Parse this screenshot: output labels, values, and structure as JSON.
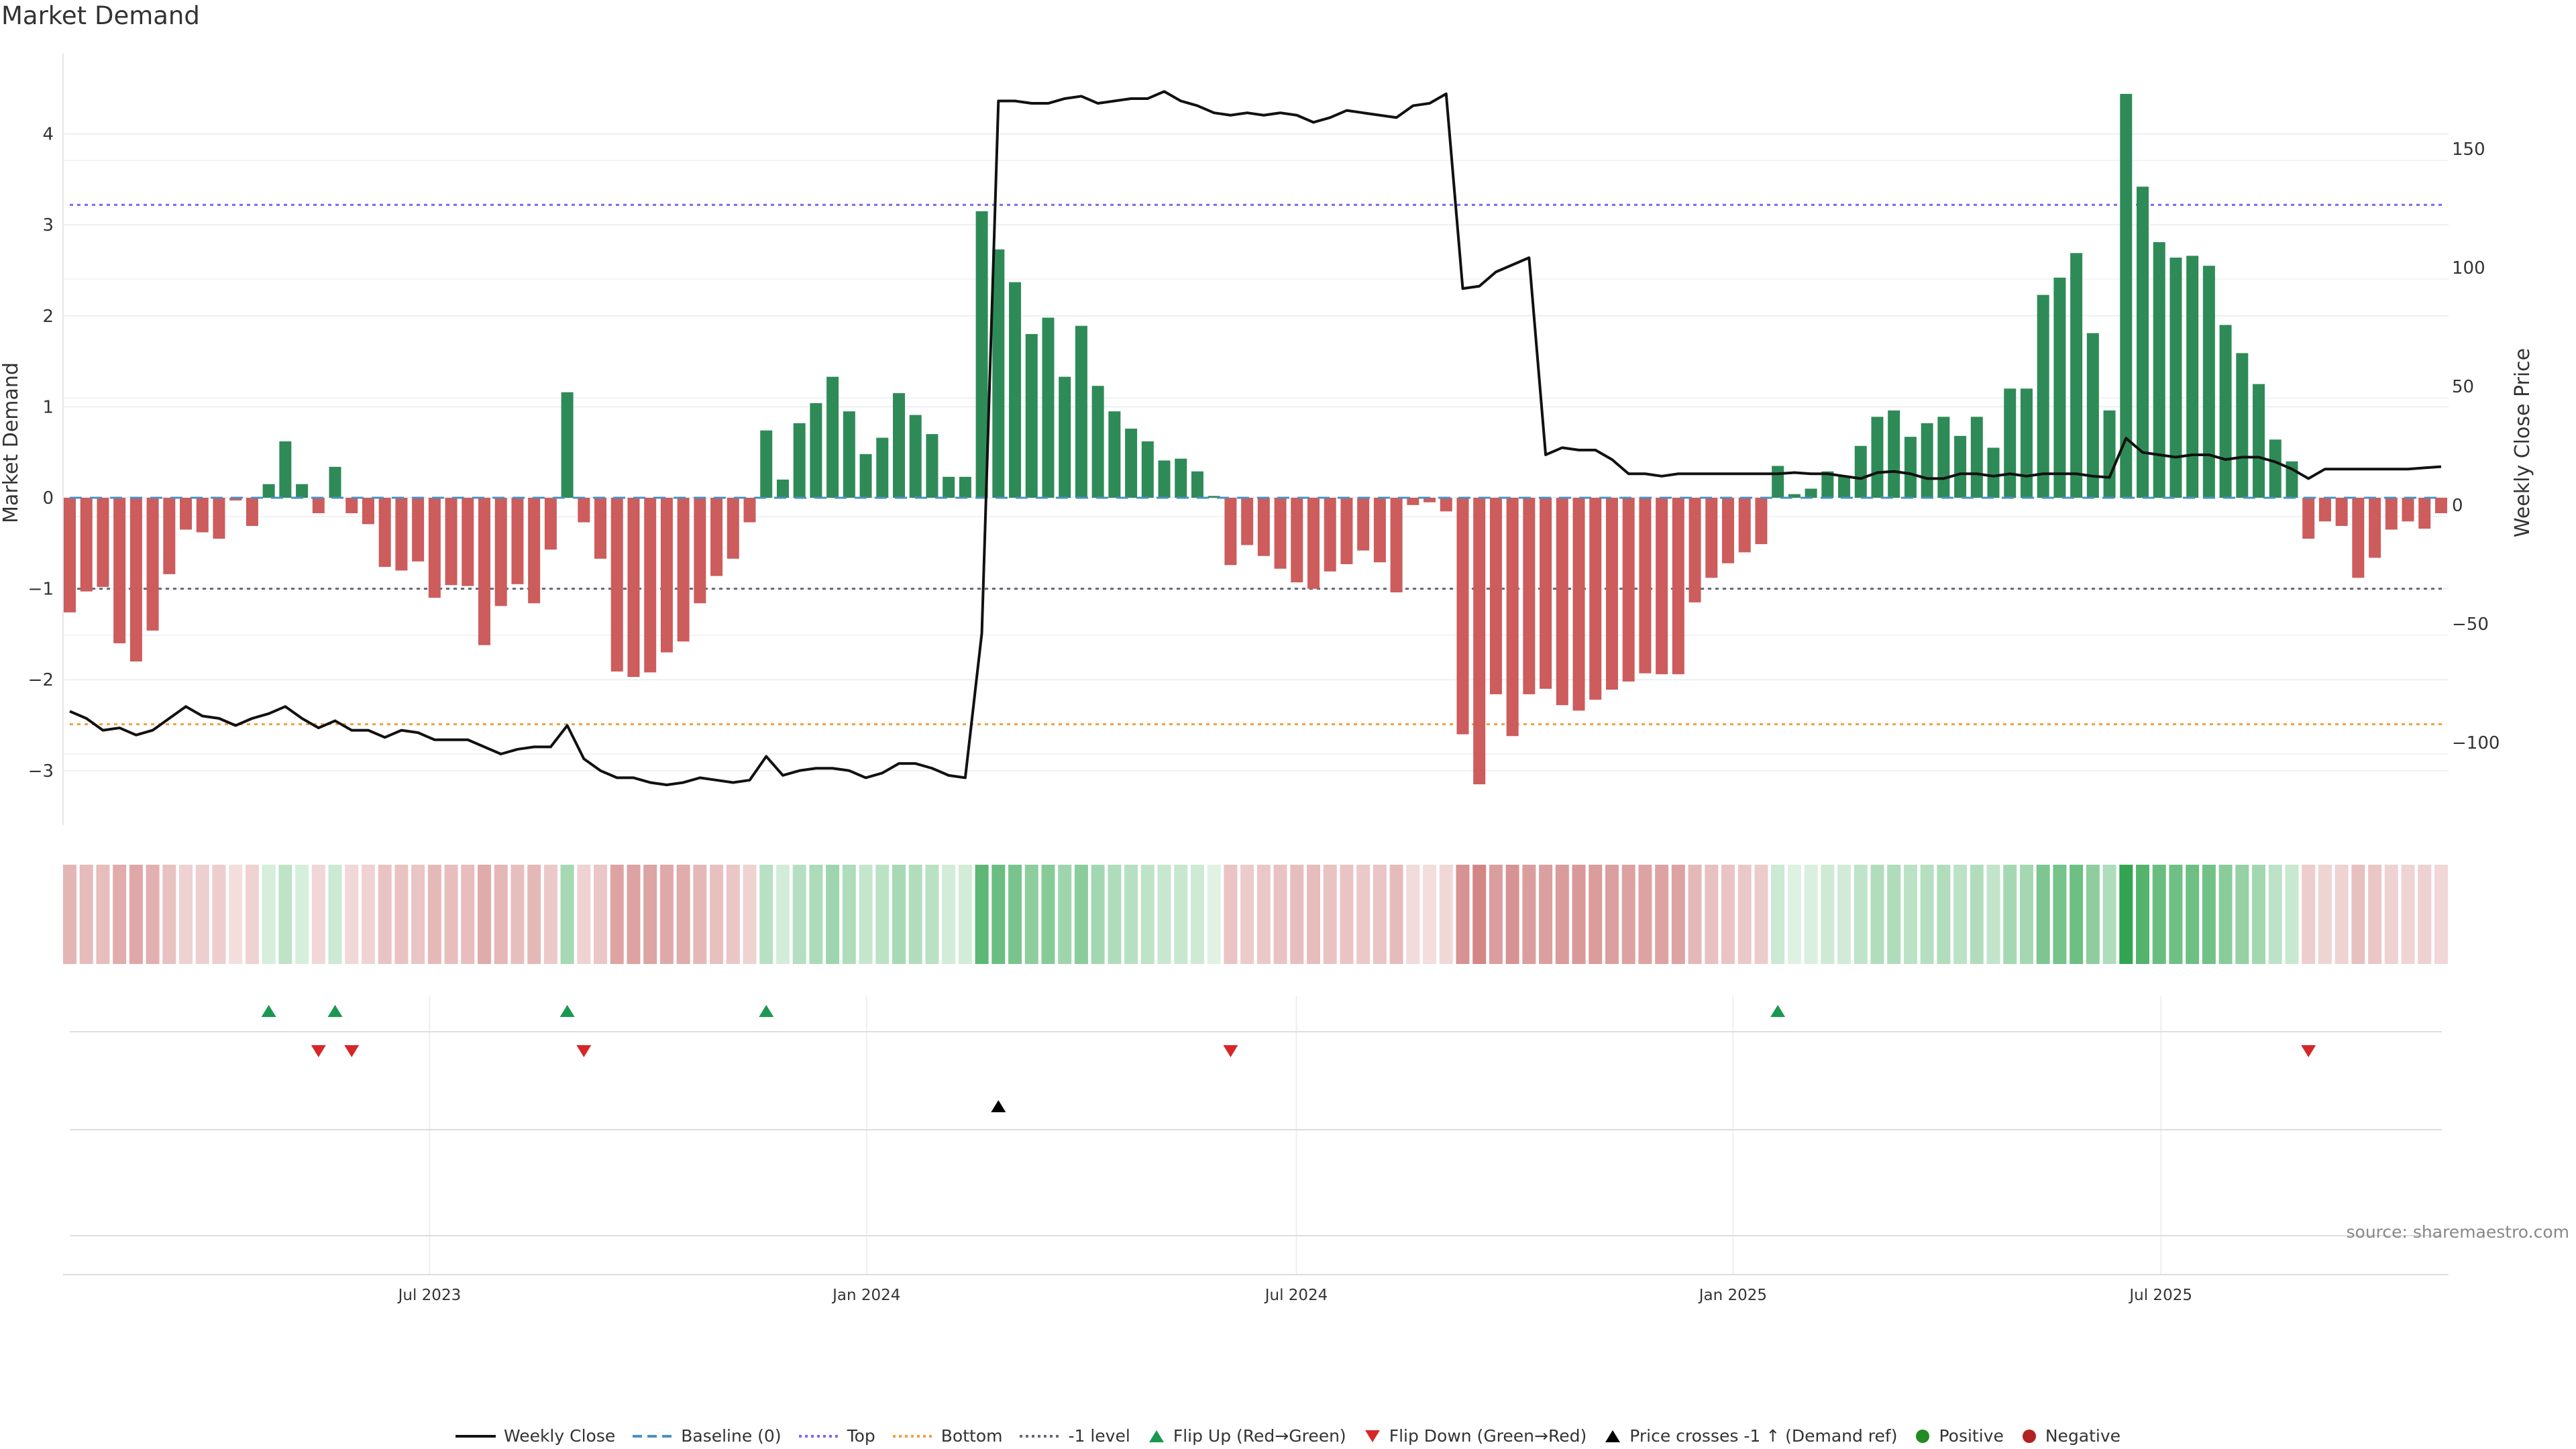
{
  "title": "Market Demand",
  "source": "source: sharemaestro.com",
  "chart_data": {
    "type": "bar",
    "title": "Market Demand",
    "ylabel": "Market Demand",
    "y2label": "Weekly Close Price",
    "ylim": [
      -3.6,
      4.9
    ],
    "y2lim": [
      -128,
      196
    ],
    "grid": true,
    "legend_position": "bottom-center",
    "left_ticks": [
      "4",
      "3",
      "2",
      "1",
      "0",
      "−1",
      "−2",
      "−3"
    ],
    "left_tick_values": [
      4,
      3,
      2,
      1,
      0,
      -1,
      -2,
      -3
    ],
    "right_ticks": [
      "150",
      "100",
      "50",
      "0",
      "−50",
      "−100"
    ],
    "right_tick_values": [
      150,
      100,
      50,
      0,
      -50,
      -100
    ],
    "x_ticks": [
      {
        "label": "Jul 2023",
        "week_index": 21.7
      },
      {
        "label": "Jan 2024",
        "week_index": 48.05
      },
      {
        "label": "Jul 2024",
        "week_index": 73.97
      },
      {
        "label": "Jan 2025",
        "week_index": 100.3
      },
      {
        "label": "Jul 2025",
        "week_index": 126.1
      }
    ],
    "levels": {
      "top": 3.22,
      "bottom": -2.49,
      "minus_one": -1.0,
      "baseline": 0
    },
    "demand": [
      -1.26,
      -1.03,
      -0.98,
      -1.6,
      -1.8,
      -1.46,
      -0.84,
      -0.35,
      -0.38,
      -0.45,
      -0.03,
      -0.31,
      0.15,
      0.62,
      0.15,
      -0.17,
      0.34,
      -0.17,
      -0.29,
      -0.76,
      -0.8,
      -0.7,
      -1.1,
      -0.96,
      -0.97,
      -1.62,
      -1.19,
      -0.95,
      -1.16,
      -0.57,
      1.16,
      -0.27,
      -0.67,
      -1.91,
      -1.97,
      -1.92,
      -1.7,
      -1.58,
      -1.16,
      -0.86,
      -0.67,
      -0.27,
      0.74,
      0.2,
      0.82,
      1.04,
      1.33,
      0.95,
      0.48,
      0.66,
      1.15,
      0.91,
      0.7,
      0.23,
      0.23,
      3.15,
      2.73,
      2.37,
      1.8,
      1.98,
      1.33,
      1.89,
      1.23,
      0.95,
      0.76,
      0.62,
      0.41,
      0.43,
      0.29,
      0.02,
      -0.74,
      -0.52,
      -0.64,
      -0.78,
      -0.93,
      -1.0,
      -0.81,
      -0.73,
      -0.58,
      -0.71,
      -1.04,
      -0.08,
      -0.05,
      -0.15,
      -2.6,
      -3.15,
      -2.16,
      -2.62,
      -2.16,
      -2.1,
      -2.28,
      -2.34,
      -2.22,
      -2.11,
      -2.02,
      -1.93,
      -1.94,
      -1.94,
      -1.15,
      -0.88,
      -0.72,
      -0.6,
      -0.51,
      0.35,
      0.04,
      0.1,
      0.29,
      0.24,
      0.57,
      0.89,
      0.96,
      0.67,
      0.82,
      0.89,
      0.68,
      0.89,
      0.55,
      1.2,
      1.2,
      2.23,
      2.42,
      2.69,
      1.81,
      0.96,
      4.44,
      3.42,
      2.81,
      2.64,
      2.66,
      2.55,
      1.9,
      1.59,
      1.25,
      0.64,
      0.4,
      -0.45,
      -0.26,
      -0.31,
      -0.88,
      -0.66,
      -0.35,
      -0.26,
      -0.34,
      -0.17
    ],
    "weekly_close": [
      -82,
      -85,
      -90,
      -89,
      -92,
      -90,
      -85,
      -80,
      -84,
      -85,
      -88,
      -85,
      -83,
      -80,
      -85,
      -89,
      -86,
      -90,
      -90,
      -93,
      -90,
      -91,
      -94,
      -94,
      -94,
      -97,
      -100,
      -98,
      -97,
      -97,
      -88,
      -102,
      -107,
      -110,
      -110,
      -112,
      -113,
      -112,
      -110,
      -111,
      -112,
      -111,
      -101,
      -109,
      -107,
      -106,
      -106,
      -107,
      -110,
      -108,
      -104,
      -104,
      -106,
      -109,
      -110,
      -49,
      175,
      175,
      174,
      174,
      176,
      177,
      174,
      175,
      176,
      176,
      179,
      175,
      173,
      170,
      169,
      170,
      169,
      170,
      169,
      166,
      168,
      171,
      170,
      169,
      168,
      173,
      174,
      178,
      96,
      97,
      103,
      106,
      109,
      26,
      29,
      28,
      28,
      24,
      18,
      18,
      17,
      18,
      18,
      18,
      18,
      18,
      18,
      18,
      18.5,
      18,
      18,
      17,
      16,
      18.5,
      19,
      18,
      16,
      16,
      18,
      18,
      17,
      18,
      17,
      18,
      18,
      18,
      17,
      16.5,
      33,
      27,
      26,
      25,
      26,
      26,
      24,
      25,
      25,
      23,
      20,
      16,
      20,
      20,
      20,
      20,
      20,
      20,
      20.5,
      21
    ],
    "flip_up_weeks": [
      12,
      16,
      30,
      42,
      103
    ],
    "flip_down_weeks": [
      15,
      17,
      31,
      70,
      135
    ],
    "price_cross_weeks": [
      56
    ],
    "colors": {
      "positive": "#2e8b57",
      "negative": "#cd5c5c",
      "top": "#7b68ee",
      "bottom": "#f0a040",
      "minus_one": "#666677",
      "baseline": "#4a90c0",
      "flip_up": "#1a9850",
      "flip_down": "#d62728",
      "price_cross": "#000000",
      "legend_positive": "#228b22",
      "legend_negative": "#b22222"
    },
    "legend": [
      {
        "label": "Weekly Close",
        "symbol": "line-solid",
        "color": "#111111"
      },
      {
        "label": "Baseline (0)",
        "symbol": "line-dashed",
        "color": "#4a90c0"
      },
      {
        "label": "Top",
        "symbol": "line-dotted",
        "color": "#7b68ee"
      },
      {
        "label": "Bottom",
        "symbol": "line-dotted",
        "color": "#f0a040"
      },
      {
        "label": "-1 level",
        "symbol": "line-dotted",
        "color": "#666677"
      },
      {
        "label": "Flip Up (Red→Green)",
        "symbol": "triangle-up",
        "color": "#1a9850"
      },
      {
        "label": "Flip Down (Green→Red)",
        "symbol": "triangle-down",
        "color": "#d62728"
      },
      {
        "label": "Price crosses -1 ↑ (Demand ref)",
        "symbol": "triangle-up",
        "color": "#000000"
      },
      {
        "label": "Positive",
        "symbol": "circle",
        "color": "#228b22"
      },
      {
        "label": "Negative",
        "symbol": "circle",
        "color": "#b22222"
      }
    ]
  }
}
